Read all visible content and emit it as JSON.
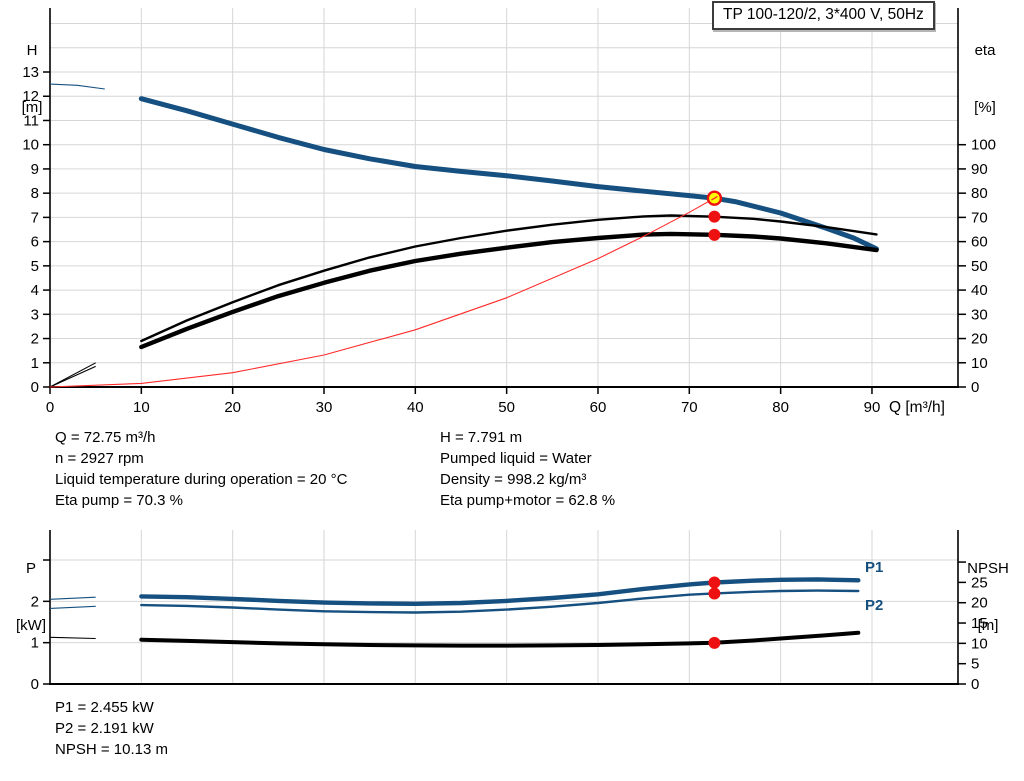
{
  "title_box": {
    "label": "TP 100-120/2, 3*400 V, 50Hz"
  },
  "colors": {
    "curve_blue": "#155080",
    "curve_black": "#000000",
    "system_red": "#ff2a2a",
    "dot_red": "#ee1111",
    "duty_yellow": "#ffff00",
    "grid": "#d6d6d6",
    "axis": "#000000"
  },
  "axis_units": {
    "h_top": "H",
    "h_bottom": "[m]",
    "eta_top": "eta",
    "eta_bottom": "[%]",
    "q_label": "Q [m³/h]",
    "p_top": "P",
    "p_bottom": "[kW]",
    "npsh_top": "NPSH",
    "npsh_bottom": "[m]"
  },
  "power_labels": {
    "p1": "P1",
    "p2": "P2"
  },
  "info_top": {
    "left": [
      "Q = 72.75 m³/h",
      "n = 2927 rpm",
      "Liquid temperature during operation = 20 °C",
      "Eta pump = 70.3 %"
    ],
    "right": [
      "H = 7.791 m",
      "Pumped liquid = Water",
      "Density = 998.2 kg/m³",
      "Eta pump+motor = 62.8 %"
    ]
  },
  "info_bottom": [
    "P1 = 2.455 kW",
    "P2 = 2.191 kW",
    "NPSH = 10.13 m"
  ],
  "chart_data": [
    {
      "id": "top",
      "type": "line",
      "title": "TP 100-120/2, 3*400 V, 50Hz",
      "x_axis": {
        "label": "Q [m³/h]",
        "min": 0,
        "max": 99.4,
        "ticks": [
          0,
          10,
          20,
          30,
          40,
          50,
          60,
          70,
          80,
          90
        ]
      },
      "y_left": {
        "label": "H [m]",
        "min": 0,
        "max": 15.6,
        "ticks": [
          0,
          1,
          2,
          3,
          4,
          5,
          6,
          7,
          8,
          9,
          10,
          11,
          12,
          13
        ],
        "grid_to": 15
      },
      "y_right": {
        "label": "eta [%]",
        "min": 0,
        "max": 100,
        "ticks": [
          0,
          10,
          20,
          30,
          40,
          50,
          60,
          70,
          80,
          90,
          100
        ]
      },
      "series": [
        {
          "name": "head-curve",
          "axis": "H",
          "color_key": "curve_blue",
          "width": 5,
          "thin_until": 6.5,
          "points": [
            [
              0,
              12.5
            ],
            [
              3,
              12.45
            ],
            [
              6,
              12.3
            ],
            [
              10,
              11.9
            ],
            [
              15,
              11.4
            ],
            [
              20,
              10.85
            ],
            [
              25,
              10.3
            ],
            [
              30,
              9.8
            ],
            [
              35,
              9.42
            ],
            [
              40,
              9.1
            ],
            [
              45,
              8.9
            ],
            [
              50,
              8.72
            ],
            [
              55,
              8.5
            ],
            [
              60,
              8.27
            ],
            [
              65,
              8.08
            ],
            [
              70,
              7.9
            ],
            [
              72.75,
              7.791
            ],
            [
              75,
              7.65
            ],
            [
              80,
              7.18
            ],
            [
              85,
              6.55
            ],
            [
              88,
              6.15
            ],
            [
              90.5,
              5.7
            ]
          ]
        },
        {
          "name": "eta-pump-curve",
          "axis": "eta",
          "color_key": "curve_black",
          "width": 2.4,
          "thin_until": 6.5,
          "points": [
            [
              0,
              0
            ],
            [
              5,
              10
            ],
            [
              10,
              19
            ],
            [
              15,
              27.5
            ],
            [
              20,
              35
            ],
            [
              25,
              42
            ],
            [
              30,
              48
            ],
            [
              35,
              53.5
            ],
            [
              40,
              58
            ],
            [
              45,
              61.5
            ],
            [
              50,
              64.5
            ],
            [
              55,
              67
            ],
            [
              60,
              69
            ],
            [
              65,
              70.4
            ],
            [
              68,
              70.8
            ],
            [
              72.75,
              70.3
            ],
            [
              77,
              69.4
            ],
            [
              80,
              68.3
            ],
            [
              85,
              66
            ],
            [
              90.5,
              63
            ]
          ]
        },
        {
          "name": "eta-pump-motor-curve",
          "axis": "eta",
          "color_key": "curve_black",
          "width": 4.4,
          "thin_until": 6.5,
          "points": [
            [
              0,
              0
            ],
            [
              5,
              8.5
            ],
            [
              10,
              16.5
            ],
            [
              15,
              24
            ],
            [
              20,
              31
            ],
            [
              25,
              37.5
            ],
            [
              30,
              43
            ],
            [
              35,
              48
            ],
            [
              40,
              52
            ],
            [
              45,
              55
            ],
            [
              50,
              57.5
            ],
            [
              55,
              59.8
            ],
            [
              60,
              61.5
            ],
            [
              65,
              62.9
            ],
            [
              68,
              63.2
            ],
            [
              72.75,
              62.8
            ],
            [
              77,
              62.1
            ],
            [
              80,
              61.3
            ],
            [
              85,
              59.3
            ],
            [
              90.5,
              56.5
            ]
          ]
        },
        {
          "name": "system-curve",
          "axis": "H",
          "color_key": "system_red",
          "width": 1.1,
          "thin_until": 0,
          "points": [
            [
              0,
              0
            ],
            [
              10,
              0.15
            ],
            [
              20,
              0.59
            ],
            [
              30,
              1.32
            ],
            [
              40,
              2.36
            ],
            [
              50,
              3.68
            ],
            [
              60,
              5.3
            ],
            [
              65,
              6.22
            ],
            [
              70,
              7.21
            ],
            [
              72.75,
              7.791
            ]
          ]
        }
      ],
      "markers": {
        "duty_point": {
          "q": 72.75,
          "value": 7.791,
          "axis": "H"
        },
        "dots": [
          {
            "q": 72.75,
            "value": 70.3,
            "axis": "eta"
          },
          {
            "q": 72.75,
            "value": 62.8,
            "axis": "eta"
          }
        ]
      }
    },
    {
      "id": "bottom",
      "type": "line",
      "x_axis": {
        "label": "",
        "min": 0,
        "max": 99.4,
        "ticks": [
          10,
          20,
          30,
          40,
          50,
          60,
          70,
          80,
          90
        ]
      },
      "y_left": {
        "label": "P [kW]",
        "min": 0,
        "max": 3.7,
        "ticks": [
          0,
          1,
          2
        ],
        "ticks_unlabeled": [
          3
        ],
        "grid": [
          1,
          2,
          3
        ]
      },
      "y_right": {
        "label": "NPSH [m]",
        "min": 0,
        "max": 30,
        "ticks": [
          0,
          5,
          10,
          15,
          20,
          25
        ],
        "ticks_unlabeled": [
          30
        ]
      },
      "series": [
        {
          "name": "p1-curve",
          "axis": "P",
          "color_key": "curve_blue",
          "width": 4.4,
          "thin_until": 6.5,
          "points": [
            [
              0,
              2.05
            ],
            [
              5,
              2.1
            ],
            [
              10,
              2.12
            ],
            [
              15,
              2.1
            ],
            [
              20,
              2.06
            ],
            [
              25,
              2.01
            ],
            [
              30,
              1.97
            ],
            [
              35,
              1.95
            ],
            [
              40,
              1.94
            ],
            [
              45,
              1.96
            ],
            [
              50,
              2.01
            ],
            [
              55,
              2.08
            ],
            [
              60,
              2.17
            ],
            [
              65,
              2.3
            ],
            [
              70,
              2.41
            ],
            [
              72.75,
              2.455
            ],
            [
              77,
              2.5
            ],
            [
              80,
              2.52
            ],
            [
              84,
              2.53
            ],
            [
              88.5,
              2.51
            ]
          ]
        },
        {
          "name": "p2-curve",
          "axis": "P",
          "color_key": "curve_blue",
          "width": 2.4,
          "thin_until": 6.5,
          "points": [
            [
              0,
              1.83
            ],
            [
              5,
              1.88
            ],
            [
              10,
              1.91
            ],
            [
              15,
              1.89
            ],
            [
              20,
              1.85
            ],
            [
              25,
              1.8
            ],
            [
              30,
              1.76
            ],
            [
              35,
              1.74
            ],
            [
              40,
              1.73
            ],
            [
              45,
              1.75
            ],
            [
              50,
              1.8
            ],
            [
              55,
              1.87
            ],
            [
              60,
              1.96
            ],
            [
              65,
              2.07
            ],
            [
              70,
              2.16
            ],
            [
              72.75,
              2.191
            ],
            [
              77,
              2.23
            ],
            [
              80,
              2.25
            ],
            [
              84,
              2.26
            ],
            [
              88.5,
              2.25
            ]
          ]
        },
        {
          "name": "npsh-curve",
          "axis": "NPSH",
          "color_key": "curve_black",
          "width": 4,
          "thin_until": 6.5,
          "points": [
            [
              0,
              11.5
            ],
            [
              5,
              11.2
            ],
            [
              10,
              10.9
            ],
            [
              15,
              10.6
            ],
            [
              20,
              10.3
            ],
            [
              25,
              10.0
            ],
            [
              30,
              9.8
            ],
            [
              35,
              9.6
            ],
            [
              40,
              9.5
            ],
            [
              45,
              9.45
            ],
            [
              50,
              9.45
            ],
            [
              55,
              9.5
            ],
            [
              60,
              9.6
            ],
            [
              65,
              9.8
            ],
            [
              70,
              10.0
            ],
            [
              72.75,
              10.13
            ],
            [
              77,
              10.7
            ],
            [
              80,
              11.2
            ],
            [
              85,
              12.0
            ],
            [
              88.5,
              12.6
            ]
          ]
        }
      ],
      "markers": {
        "dots": [
          {
            "q": 72.75,
            "value": 2.455,
            "axis": "P"
          },
          {
            "q": 72.75,
            "value": 2.191,
            "axis": "P"
          },
          {
            "q": 72.75,
            "value": 10.13,
            "axis": "NPSH"
          }
        ]
      }
    }
  ]
}
